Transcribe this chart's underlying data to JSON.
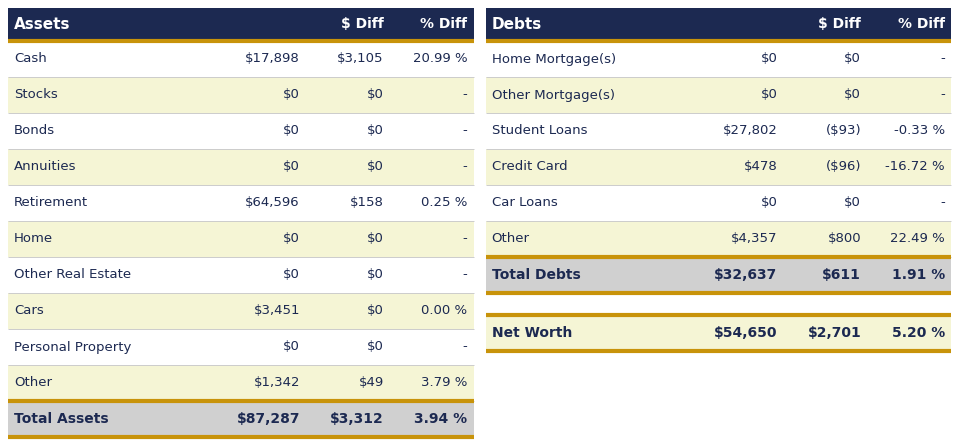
{
  "header_bg": "#1c2951",
  "header_text": "#ffffff",
  "orange_line": "#c8930a",
  "row_alt_bg": "#f5f5d5",
  "row_white_bg": "#ffffff",
  "total_bg": "#d0d0d0",
  "networth_bg": "#f5f5d5",
  "body_text": "#1c2951",
  "assets_header": [
    "Assets",
    "$ Diff",
    "% Diff"
  ],
  "assets_rows": [
    [
      "Cash",
      "$17,898",
      "$3,105",
      "20.99 %"
    ],
    [
      "Stocks",
      "$0",
      "$0",
      "-"
    ],
    [
      "Bonds",
      "$0",
      "$0",
      "-"
    ],
    [
      "Annuities",
      "$0",
      "$0",
      "-"
    ],
    [
      "Retirement",
      "$64,596",
      "$158",
      "0.25 %"
    ],
    [
      "Home",
      "$0",
      "$0",
      "-"
    ],
    [
      "Other Real Estate",
      "$0",
      "$0",
      "-"
    ],
    [
      "Cars",
      "$3,451",
      "$0",
      "0.00 %"
    ],
    [
      "Personal Property",
      "$0",
      "$0",
      "-"
    ],
    [
      "Other",
      "$1,342",
      "$49",
      "3.79 %"
    ]
  ],
  "assets_total": [
    "Total Assets",
    "$87,287",
    "$3,312",
    "3.94 %"
  ],
  "debts_header": [
    "Debts",
    "$ Diff",
    "% Diff"
  ],
  "debts_rows": [
    [
      "Home Mortgage(s)",
      "$0",
      "$0",
      "-"
    ],
    [
      "Other Mortgage(s)",
      "$0",
      "$0",
      "-"
    ],
    [
      "Student Loans",
      "$27,802",
      "($93)",
      "-0.33 %"
    ],
    [
      "Credit Card",
      "$478",
      "($96)",
      "-16.72 %"
    ],
    [
      "Car Loans",
      "$0",
      "$0",
      "-"
    ],
    [
      "Other",
      "$4,357",
      "$800",
      "22.49 %"
    ]
  ],
  "debts_total": [
    "Total Debts",
    "$32,637",
    "$611",
    "1.91 %"
  ],
  "networth_row": [
    "Net Worth",
    "$54,650",
    "$2,701",
    "5.20 %"
  ],
  "fig_width": 9.59,
  "fig_height": 4.47,
  "dpi": 100
}
